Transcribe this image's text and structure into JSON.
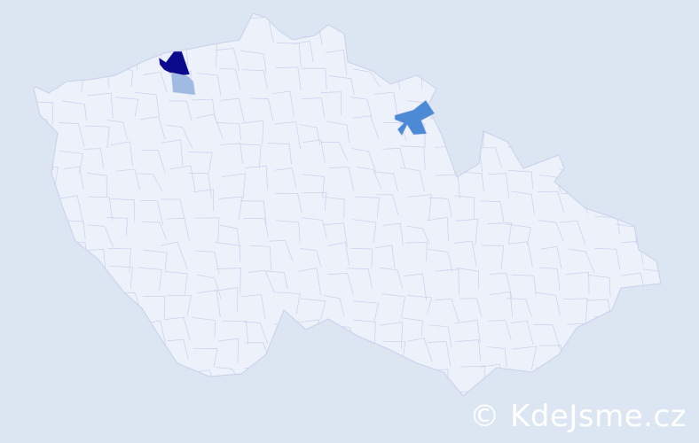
{
  "map": {
    "colors": {
      "background": "#dce5f2",
      "region_fill": "#edf1fa",
      "region_border": "#c9d1ec",
      "highlight_high": "#0b0a8d",
      "highlight_medium": "#4d8ad6",
      "highlight_low": "#9fbbe2"
    },
    "highlighted_regions": [
      {
        "level": "high"
      },
      {
        "level": "low"
      },
      {
        "level": "medium"
      }
    ]
  },
  "watermark": {
    "text": "© KdeJsme.cz"
  }
}
